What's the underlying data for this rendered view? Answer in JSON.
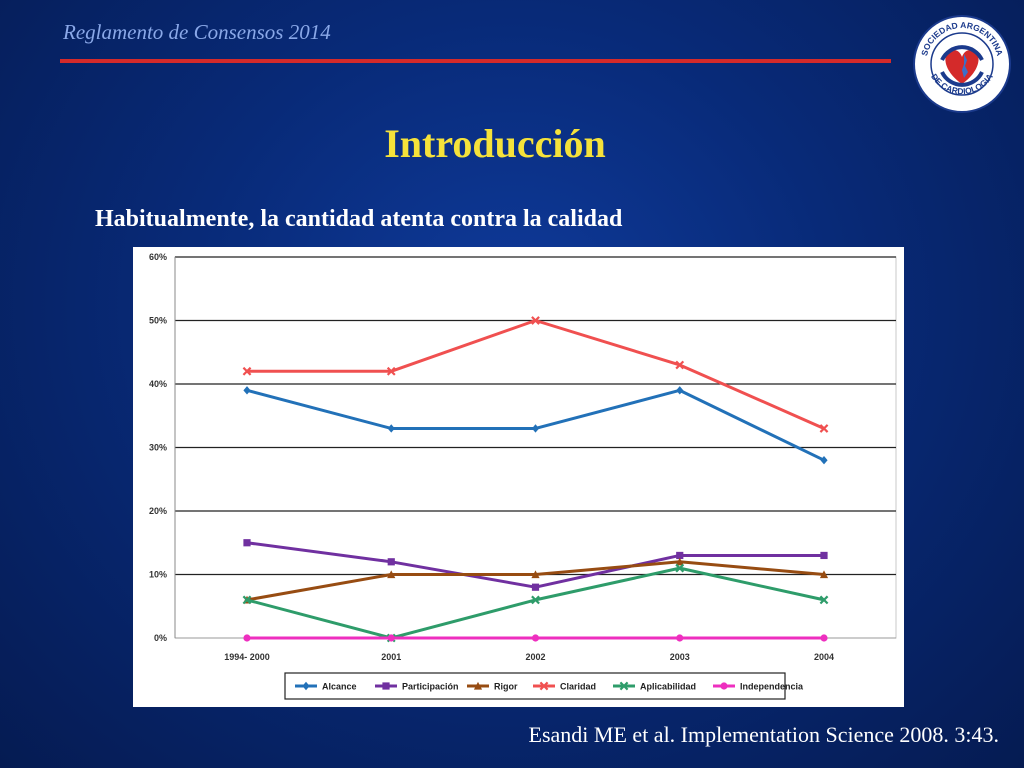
{
  "header": {
    "title": "Reglamento de Consensos 2014"
  },
  "logo": {
    "text_top": "SOCIEDAD ARGENTINA",
    "text_bottom": "DE CARDIOLOGIA"
  },
  "slide": {
    "title": "Introducción",
    "subtitle": "Habitualmente, la cantidad atenta contra la calidad",
    "citation": "Esandi ME et al. Implementation Science 2008. 3:43."
  },
  "colors": {
    "background": "#082a78",
    "title": "#f5e23a",
    "header_rule": "#d42a2a"
  },
  "chart_data": {
    "type": "line",
    "title": "",
    "xlabel": "",
    "ylabel": "",
    "categories": [
      "1994- 2000",
      "2001",
      "2002",
      "2003",
      "2004"
    ],
    "ylim": [
      0,
      60
    ],
    "yticks": [
      0,
      10,
      20,
      30,
      40,
      50,
      60
    ],
    "ytick_labels": [
      "0%",
      "10%",
      "20%",
      "30%",
      "40%",
      "50%",
      "60%"
    ],
    "grid": true,
    "legend_position": "bottom",
    "series": [
      {
        "name": "Alcance",
        "color": "#2271b8",
        "marker": "diamond",
        "values": [
          39,
          33,
          33,
          39,
          28
        ]
      },
      {
        "name": "Participación",
        "color": "#7030a0",
        "marker": "square",
        "values": [
          15,
          12,
          8,
          13,
          13
        ]
      },
      {
        "name": "Rigor",
        "color": "#974c12",
        "marker": "triangle",
        "values": [
          6,
          10,
          10,
          12,
          10
        ]
      },
      {
        "name": "Claridad",
        "color": "#f05050",
        "marker": "x",
        "values": [
          42,
          42,
          50,
          43,
          33
        ]
      },
      {
        "name": "Aplicabilidad",
        "color": "#2e9c6a",
        "marker": "x",
        "values": [
          6,
          0,
          6,
          11,
          6
        ]
      },
      {
        "name": "Independencia",
        "color": "#ee2fbf",
        "marker": "circle",
        "values": [
          0,
          0,
          0,
          0,
          0
        ]
      }
    ]
  }
}
